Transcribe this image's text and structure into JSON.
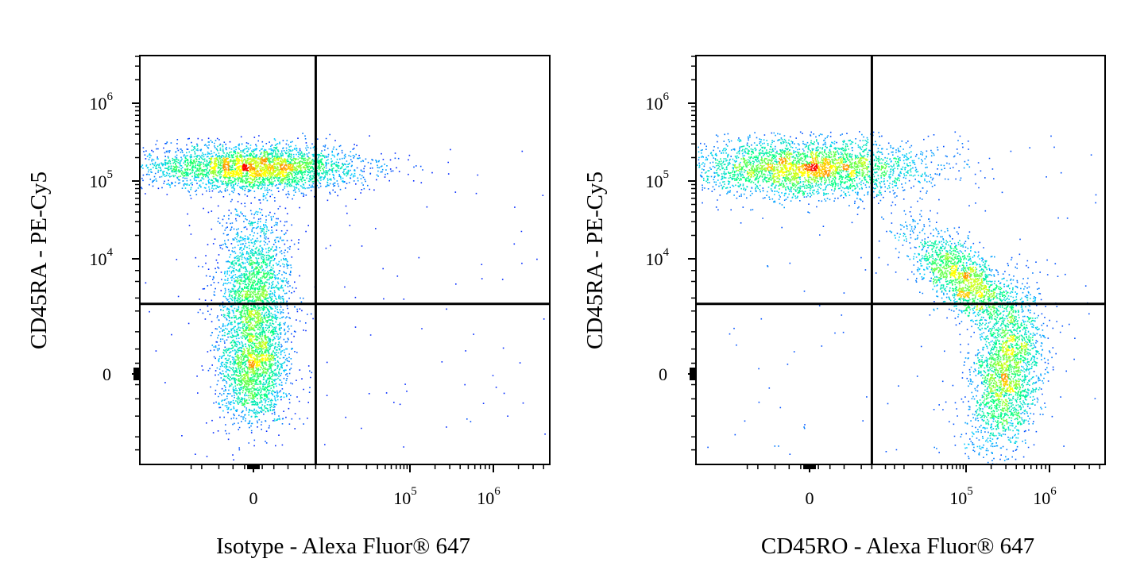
{
  "chart_data": [
    {
      "type": "scatter",
      "subtype": "flow-cytometry-density-dot-plot",
      "title": "",
      "xlabel": "Isotype - Alexa Fluor® 647",
      "ylabel": "CD45RA - PE-Cy5",
      "x_scale": "biexponential",
      "y_scale": "biexponential",
      "x_ticks": [
        {
          "value": 0,
          "base": "0",
          "exp": ""
        },
        {
          "value": 100000,
          "base": "10",
          "exp": "5"
        },
        {
          "value": 1000000,
          "base": "10",
          "exp": "6"
        }
      ],
      "y_ticks": [
        {
          "value": 0,
          "base": "0",
          "exp": ""
        },
        {
          "value": 10000,
          "base": "10",
          "exp": "4"
        },
        {
          "value": 100000,
          "base": "10",
          "exp": "5"
        },
        {
          "value": 1000000,
          "base": "10",
          "exp": "6"
        }
      ],
      "quadrant_gate": {
        "x": 3000,
        "y": 2500
      },
      "populations": [
        {
          "name": "",
          "x_center": 0,
          "y_center": 150000,
          "approx_fraction": 0.45
        },
        {
          "name": "",
          "x_center": 0,
          "y_center": 3000,
          "approx_fraction": 0.35
        },
        {
          "name": "",
          "x_center": 0,
          "y_center": 0,
          "approx_fraction": 0.2
        }
      ],
      "grid": false,
      "colormap": [
        "#0000ff",
        "#00c8ff",
        "#00ff80",
        "#ffff00",
        "#ff0000"
      ]
    },
    {
      "type": "scatter",
      "subtype": "flow-cytometry-density-dot-plot",
      "title": "",
      "xlabel": "CD45RO - Alexa Fluor® 647",
      "ylabel": "CD45RA - PE-Cy5",
      "x_scale": "biexponential",
      "y_scale": "biexponential",
      "x_ticks": [
        {
          "value": 0,
          "base": "0",
          "exp": ""
        },
        {
          "value": 100000,
          "base": "10",
          "exp": "5"
        },
        {
          "value": 1000000,
          "base": "10",
          "exp": "6"
        }
      ],
      "y_ticks": [
        {
          "value": 0,
          "base": "0",
          "exp": ""
        },
        {
          "value": 10000,
          "base": "10",
          "exp": "4"
        },
        {
          "value": 100000,
          "base": "10",
          "exp": "5"
        },
        {
          "value": 1000000,
          "base": "10",
          "exp": "6"
        }
      ],
      "quadrant_gate": {
        "x": 3000,
        "y": 2500
      },
      "populations": [
        {
          "name": "",
          "x_center": 0,
          "y_center": 150000,
          "approx_fraction": 0.45
        },
        {
          "name": "",
          "x_center": 100000,
          "y_center": 5000,
          "approx_fraction": 0.25
        },
        {
          "name": "",
          "x_center": 300000,
          "y_center": 0,
          "approx_fraction": 0.3
        }
      ],
      "grid": false,
      "colormap": [
        "#0000ff",
        "#00c8ff",
        "#00ff80",
        "#ffff00",
        "#ff0000"
      ]
    }
  ]
}
